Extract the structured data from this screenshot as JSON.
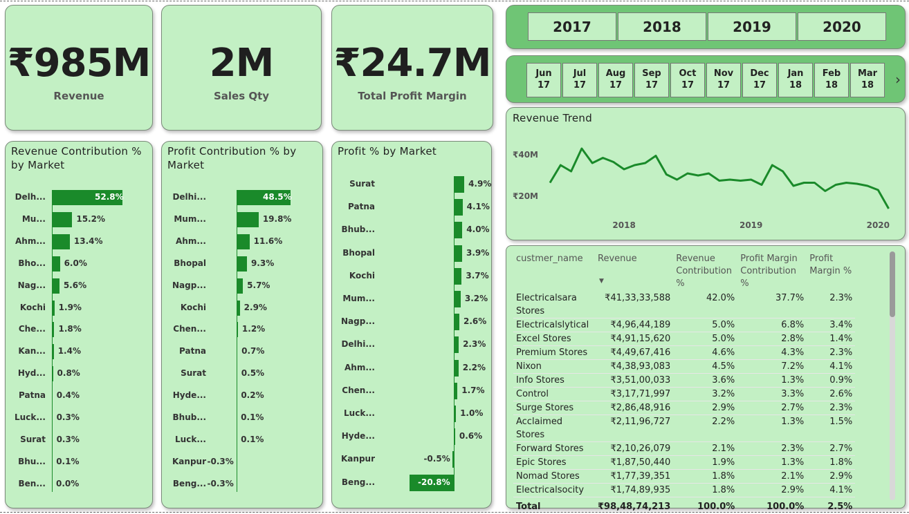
{
  "kpis": [
    {
      "value": "₹985M",
      "label": "Revenue"
    },
    {
      "value": "2M",
      "label": "Sales Qty"
    },
    {
      "value": "₹24.7M",
      "label": "Total Profit Margin"
    }
  ],
  "years": [
    "2017",
    "2018",
    "2019",
    "2020"
  ],
  "months": [
    {
      "m": "Jun",
      "y": "17"
    },
    {
      "m": "Jul",
      "y": "17"
    },
    {
      "m": "Aug",
      "y": "17"
    },
    {
      "m": "Sep",
      "y": "17"
    },
    {
      "m": "Oct",
      "y": "17"
    },
    {
      "m": "Nov",
      "y": "17"
    },
    {
      "m": "Dec",
      "y": "17"
    },
    {
      "m": "Jan",
      "y": "18"
    },
    {
      "m": "Feb",
      "y": "18"
    },
    {
      "m": "Mar",
      "y": "18"
    }
  ],
  "month_next_glyph": "›",
  "charts": {
    "revenue_contribution": {
      "title": "Revenue Contribution % by Market",
      "labels": [
        "Delh...",
        "Mu...",
        "Ahm...",
        "Bho...",
        "Nag...",
        "Kochi",
        "Che...",
        "Kan...",
        "Hyd...",
        "Patna",
        "Luck...",
        "Surat",
        "Bhu...",
        "Ben..."
      ],
      "values": [
        52.8,
        15.2,
        13.4,
        6.0,
        5.6,
        1.9,
        1.8,
        1.4,
        0.8,
        0.4,
        0.3,
        0.3,
        0.1,
        0.0
      ],
      "display": [
        "52.8%",
        "15.2%",
        "13.4%",
        "6.0%",
        "5.6%",
        "1.9%",
        "1.8%",
        "1.4%",
        "0.8%",
        "0.4%",
        "0.3%",
        "0.3%",
        "0.1%",
        "0.0%"
      ]
    },
    "profit_contribution": {
      "title": "Profit Contribution % by Market",
      "labels": [
        "Delhi...",
        "Mum...",
        "Ahm...",
        "Bhopal",
        "Nagp...",
        "Kochi",
        "Chen...",
        "Patna",
        "Surat",
        "Hyde...",
        "Bhub...",
        "Luck...",
        "Kanpur",
        "Beng..."
      ],
      "values": [
        48.5,
        19.8,
        11.6,
        9.3,
        5.7,
        2.9,
        1.2,
        0.7,
        0.5,
        0.2,
        0.1,
        0.1,
        -0.3,
        -0.3
      ],
      "display": [
        "48.5%",
        "19.8%",
        "11.6%",
        "9.3%",
        "5.7%",
        "2.9%",
        "1.2%",
        "0.7%",
        "0.5%",
        "0.2%",
        "0.1%",
        "0.1%",
        "-0.3%",
        "-0.3%"
      ]
    },
    "profit_pct": {
      "title": "Profit % by Market",
      "labels": [
        "Surat",
        "Patna",
        "Bhub...",
        "Bhopal",
        "Kochi",
        "Mum...",
        "Nagp...",
        "Delhi...",
        "Ahm...",
        "Chen...",
        "Luck...",
        "Hyde...",
        "Kanpur",
        "Beng..."
      ],
      "values": [
        4.9,
        4.1,
        4.0,
        3.9,
        3.7,
        3.2,
        2.6,
        2.3,
        2.2,
        1.7,
        1.0,
        0.6,
        -0.5,
        -20.8
      ],
      "display": [
        "4.9%",
        "4.1%",
        "4.0%",
        "3.9%",
        "3.7%",
        "3.2%",
        "2.6%",
        "2.3%",
        "2.2%",
        "1.7%",
        "1.0%",
        "0.6%",
        "-0.5%",
        "-20.8%"
      ]
    }
  },
  "trend": {
    "title": "Revenue Trend",
    "y_ticks": [
      {
        "label": "₹40M",
        "value": 40
      },
      {
        "label": "₹20M",
        "value": 20
      }
    ],
    "x_ticks": [
      {
        "label": "2018",
        "t": 7
      },
      {
        "label": "2019",
        "t": 19
      },
      {
        "label": "2020",
        "t": 31
      }
    ],
    "values": [
      26.5,
      35,
      32,
      43,
      36,
      38.5,
      36.5,
      33,
      35,
      36,
      39.5,
      30.5,
      28,
      31,
      30,
      31,
      27.5,
      28,
      27.5,
      28,
      25.5,
      35,
      32,
      25,
      26.5,
      26.5,
      22.5,
      25.5,
      26.5,
      26,
      25,
      23,
      14
    ]
  },
  "table": {
    "headers": [
      "custmer_name",
      "Revenue",
      "Revenue Contribution %",
      "Profit Margin Contribution %",
      "Profit Margin %"
    ],
    "sort_glyph": "▼",
    "rows": [
      [
        "Electricalsara Stores",
        "₹41,33,33,588",
        "42.0%",
        "37.7%",
        "2.3%"
      ],
      [
        "Electricalslytical",
        "₹4,96,44,189",
        "5.0%",
        "6.8%",
        "3.4%"
      ],
      [
        "Excel Stores",
        "₹4,91,15,620",
        "5.0%",
        "2.8%",
        "1.4%"
      ],
      [
        "Premium Stores",
        "₹4,49,67,416",
        "4.6%",
        "4.3%",
        "2.3%"
      ],
      [
        "Nixon",
        "₹4,38,93,083",
        "4.5%",
        "7.2%",
        "4.1%"
      ],
      [
        "Info Stores",
        "₹3,51,00,033",
        "3.6%",
        "1.3%",
        "0.9%"
      ],
      [
        "Control",
        "₹3,17,71,997",
        "3.2%",
        "3.3%",
        "2.6%"
      ],
      [
        "Surge Stores",
        "₹2,86,48,916",
        "2.9%",
        "2.7%",
        "2.3%"
      ],
      [
        "Acclaimed Stores",
        "₹2,11,96,727",
        "2.2%",
        "1.3%",
        "1.5%"
      ],
      [
        "Forward Stores",
        "₹2,10,26,079",
        "2.1%",
        "2.3%",
        "2.7%"
      ],
      [
        "Epic Stores",
        "₹1,87,50,440",
        "1.9%",
        "1.3%",
        "1.8%"
      ],
      [
        "Nomad Stores",
        "₹1,77,39,351",
        "1.8%",
        "2.1%",
        "2.9%"
      ],
      [
        "Electricalsocity",
        "₹1,74,89,935",
        "1.8%",
        "2.9%",
        "4.1%"
      ]
    ],
    "total": [
      "Total",
      "₹98,48,74,213",
      "100.0%",
      "100.0%",
      "2.5%"
    ]
  }
}
